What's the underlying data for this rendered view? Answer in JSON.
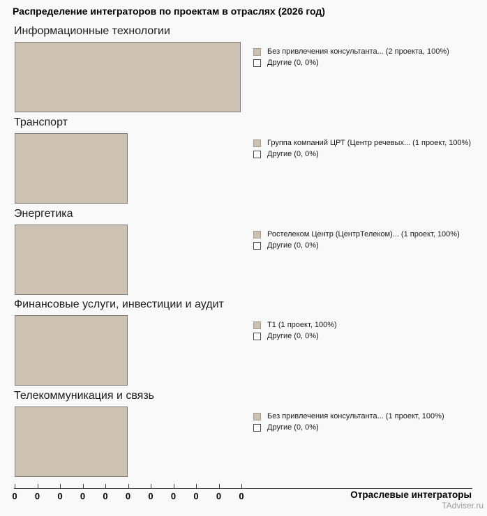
{
  "page": {
    "title": "Распределение интеграторов по проектам в отраслях (2026 год)",
    "axis_title": "Отраслевые интеграторы",
    "watermark": "TAdviser.ru"
  },
  "colors": {
    "background": "#f9f9f9",
    "bar_fill": "#ccc1b3",
    "bar_border": "#7d7d78",
    "other_swatch_fill": "#ffffff",
    "watermark_text": "#9b9b9b"
  },
  "chart_data": {
    "type": "bar",
    "title": "Распределение интеграторов по проектам в отраслях (2026 год)",
    "xlabel": "Отраслевые интеграторы",
    "x_tick_labels": [
      "0",
      "0",
      "0",
      "0",
      "0",
      "0",
      "0",
      "0",
      "0",
      "0",
      "0"
    ],
    "x_axis_unit_projects_per_pixel_note": "bar length proportional to project count",
    "xlim": [
      0,
      2
    ],
    "grid": false,
    "legend_position": "right-of-bar",
    "groups": [
      {
        "industry": "Информационные технологии",
        "bar_projects": 2,
        "series": [
          {
            "name": "Без привлечения консультанта...",
            "projects": 2,
            "percent": 100,
            "legend_label": "Без привлечения консультанта... (2 проекта, 100%)",
            "filled": true
          },
          {
            "name": "Другие",
            "projects": 0,
            "percent": 0,
            "legend_label": "Другие (0, 0%)",
            "filled": false
          }
        ]
      },
      {
        "industry": "Транспорт",
        "bar_projects": 1,
        "series": [
          {
            "name": "Группа компаний ЦРТ (Центр речевых...",
            "projects": 1,
            "percent": 100,
            "legend_label": "Группа компаний ЦРТ (Центр речевых... (1 проект, 100%)",
            "filled": true
          },
          {
            "name": "Другие",
            "projects": 0,
            "percent": 0,
            "legend_label": "Другие (0, 0%)",
            "filled": false
          }
        ]
      },
      {
        "industry": "Энергетика",
        "bar_projects": 1,
        "series": [
          {
            "name": "Ростелеком Центр (ЦентрТелеком)...",
            "projects": 1,
            "percent": 100,
            "legend_label": "Ростелеком Центр (ЦентрТелеком)... (1 проект, 100%)",
            "filled": true
          },
          {
            "name": "Другие",
            "projects": 0,
            "percent": 0,
            "legend_label": "Другие (0, 0%)",
            "filled": false
          }
        ]
      },
      {
        "industry": "Финансовые услуги, инвестиции и аудит",
        "bar_projects": 1,
        "series": [
          {
            "name": "Т1",
            "projects": 1,
            "percent": 100,
            "legend_label": "Т1 (1 проект, 100%)",
            "filled": true
          },
          {
            "name": "Другие",
            "projects": 0,
            "percent": 0,
            "legend_label": "Другие (0, 0%)",
            "filled": false
          }
        ]
      },
      {
        "industry": "Телекоммуникация и связь",
        "bar_projects": 1,
        "series": [
          {
            "name": "Без привлечения консультанта...",
            "projects": 1,
            "percent": 100,
            "legend_label": "Без привлечения консультанта... (1 проект, 100%)",
            "filled": true
          },
          {
            "name": "Другие",
            "projects": 0,
            "percent": 0,
            "legend_label": "Другие (0, 0%)",
            "filled": false
          }
        ]
      }
    ]
  }
}
